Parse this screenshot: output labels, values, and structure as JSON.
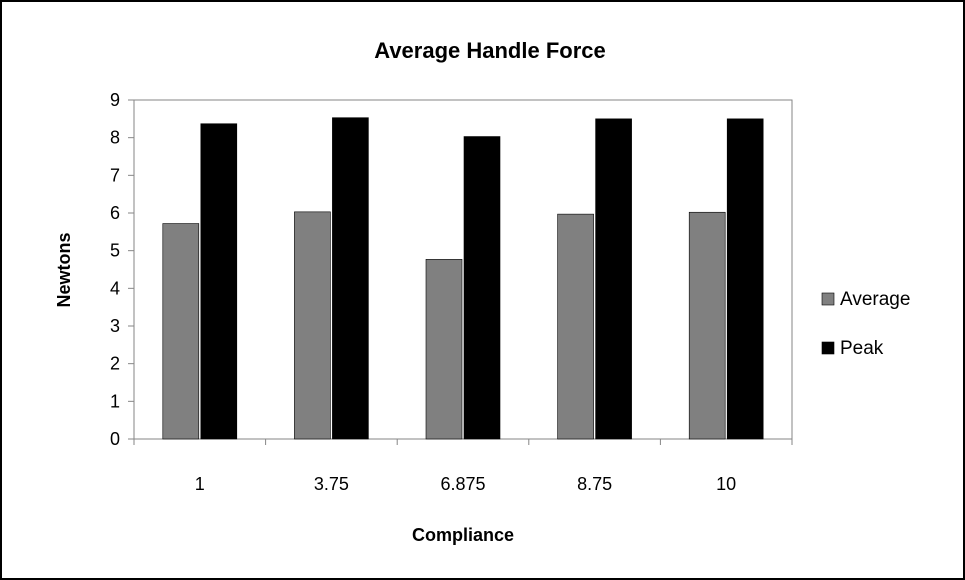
{
  "chart_data": {
    "type": "bar",
    "title": "Average Handle Force",
    "xlabel": "Compliance",
    "ylabel": "Newtons",
    "categories": [
      "1",
      "3.75",
      "6.875",
      "8.75",
      "10"
    ],
    "series": [
      {
        "name": "Average",
        "values": [
          5.72,
          6.03,
          4.77,
          5.97,
          6.02
        ],
        "color": "#808080"
      },
      {
        "name": "Peak",
        "values": [
          8.37,
          8.53,
          8.03,
          8.5,
          8.5
        ],
        "color": "#000000"
      }
    ],
    "ylim": [
      0,
      9
    ],
    "yticks": [
      "0",
      "1",
      "2",
      "3",
      "4",
      "5",
      "6",
      "7",
      "8",
      "9"
    ],
    "grid": false,
    "legend": "right"
  }
}
